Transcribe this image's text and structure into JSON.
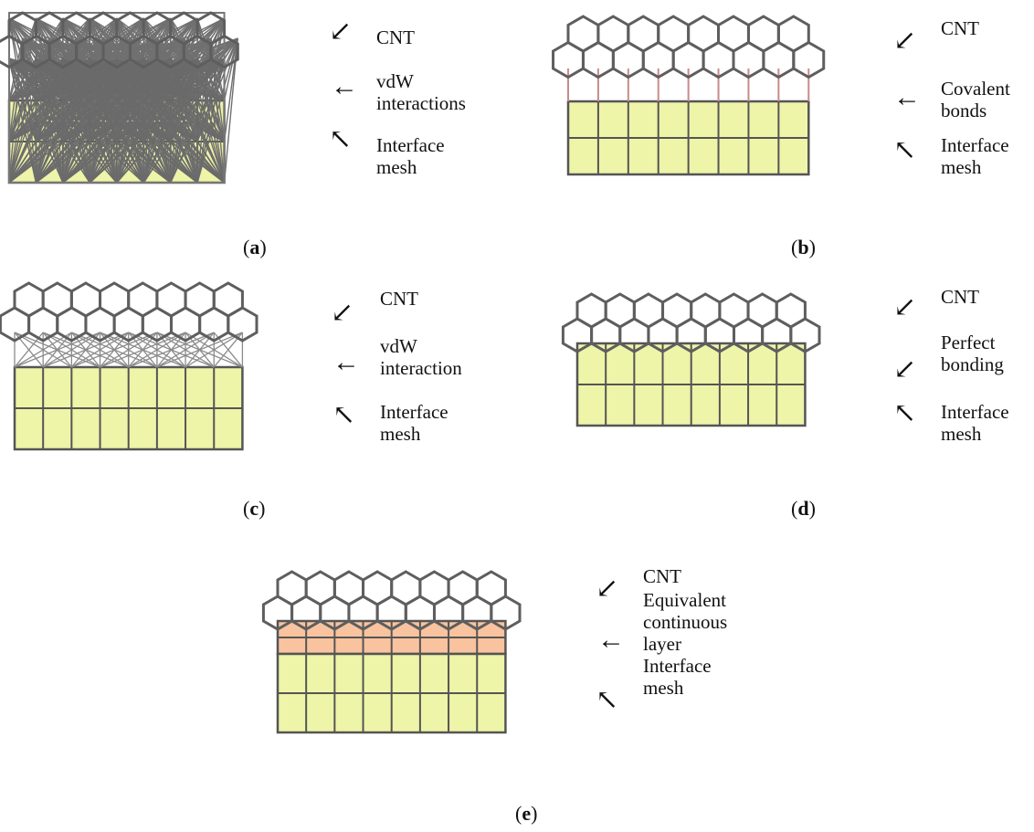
{
  "panels": {
    "a": {
      "caption_letter": "a",
      "labels": [
        "CNT",
        "vdW",
        "interactions",
        "Interface",
        "mesh"
      ]
    },
    "b": {
      "caption_letter": "b",
      "labels": [
        "CNT",
        "Covalent",
        "bonds",
        "Interface",
        "mesh"
      ]
    },
    "c": {
      "caption_letter": "c",
      "labels": [
        "CNT",
        "vdW",
        "interaction",
        "Interface",
        "mesh"
      ]
    },
    "d": {
      "caption_letter": "d",
      "labels": [
        "CNT",
        "Perfect",
        "bonding",
        "Interface",
        "mesh"
      ]
    },
    "e": {
      "caption_letter": "e",
      "labels": [
        "CNT",
        "Equivalent",
        "continuous",
        "layer",
        "Interface",
        "mesh"
      ]
    }
  },
  "colors": {
    "mesh_fill": "#eef4a8",
    "equivalent_layer_fill": "#f8c39e",
    "cnt_stroke": "#5e5e5e",
    "covalent_bond_stroke": "#c98a8a",
    "grid_stroke": "#555555"
  }
}
